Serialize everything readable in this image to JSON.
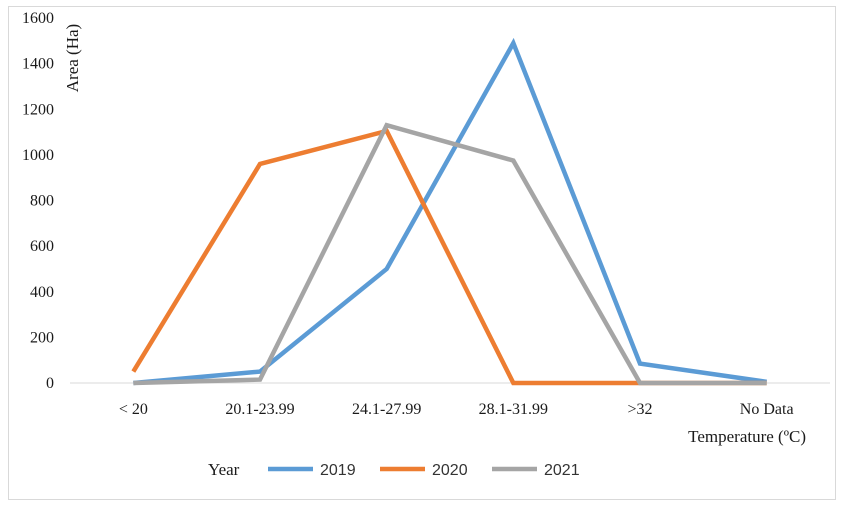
{
  "chart_data": {
    "type": "line",
    "categories": [
      "< 20",
      "20.1-23.99",
      "24.1-27.99",
      "28.1-31.99",
      ">32",
      "No Data"
    ],
    "series": [
      {
        "name": "2019",
        "color": "#5b9bd5",
        "values": [
          0,
          50,
          500,
          1490,
          85,
          5
        ]
      },
      {
        "name": "2020",
        "color": "#ed7d31",
        "values": [
          50,
          960,
          1105,
          0,
          0,
          0
        ]
      },
      {
        "name": "2021",
        "color": "#a5a5a5",
        "values": [
          0,
          15,
          1130,
          975,
          0,
          0
        ]
      }
    ],
    "xlabel": "Temperature (ºC)",
    "ylabel": "Area (Ha)",
    "ylim": [
      0,
      1600
    ],
    "yticks": [
      0,
      200,
      400,
      600,
      800,
      1000,
      1200,
      1400,
      1600
    ],
    "legend_title": "Year",
    "legend_position": "bottom",
    "grid": false
  }
}
